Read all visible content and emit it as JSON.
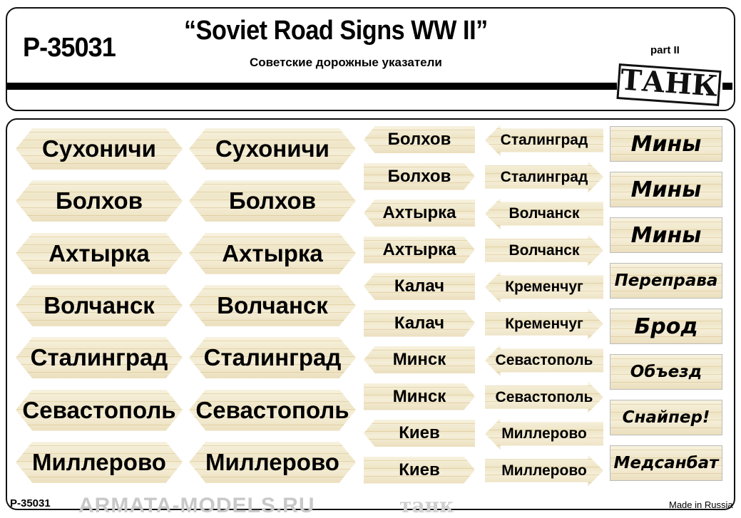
{
  "header": {
    "code": "P-35031",
    "title": "“Soviet Road Signs  WW II”",
    "subtitle": "Советские дорожные указатели",
    "part": "part II",
    "logo": "ТАНК"
  },
  "large_signs": {
    "col1": [
      "Сухоничи",
      "Болхов",
      "Ахтырка",
      "Волчанск",
      "Сталинград",
      "Севастополь",
      "Миллерово"
    ],
    "col2": [
      "Сухоничи",
      "Болхов",
      "Ахтырка",
      "Волчанск",
      "Сталинград",
      "Севастополь",
      "Миллерово"
    ]
  },
  "pointed_signs": [
    {
      "text": "Болхов",
      "dir": "left"
    },
    {
      "text": "Болхов",
      "dir": "right"
    },
    {
      "text": "Ахтырка",
      "dir": "left"
    },
    {
      "text": "Ахтырка",
      "dir": "right"
    },
    {
      "text": "Калач",
      "dir": "left"
    },
    {
      "text": "Калач",
      "dir": "right"
    },
    {
      "text": "Минск",
      "dir": "left"
    },
    {
      "text": "Минск",
      "dir": "right"
    },
    {
      "text": "Киев",
      "dir": "left"
    },
    {
      "text": "Киев",
      "dir": "right"
    }
  ],
  "arrow_signs": [
    {
      "text": "Сталинград",
      "dir": "left"
    },
    {
      "text": "Сталинград",
      "dir": "right"
    },
    {
      "text": "Волчанск",
      "dir": "left"
    },
    {
      "text": "Волчанск",
      "dir": "right"
    },
    {
      "text": "Кременчуг",
      "dir": "left"
    },
    {
      "text": "Кременчуг",
      "dir": "right"
    },
    {
      "text": "Севастополь",
      "dir": "left"
    },
    {
      "text": "Севастополь",
      "dir": "right"
    },
    {
      "text": "Миллерово",
      "dir": "left"
    },
    {
      "text": "Миллерово",
      "dir": "right"
    }
  ],
  "rect_signs": [
    "Мины",
    "Мины",
    "Мины",
    "Переправа",
    "Брод",
    "Объезд",
    "Снайпер!",
    "Медсанбат"
  ],
  "footer": {
    "code": "P-35031",
    "made_in": "Made in Russia",
    "watermark": "ARMATA-MODELS.RU"
  },
  "watermark_word": "танк"
}
